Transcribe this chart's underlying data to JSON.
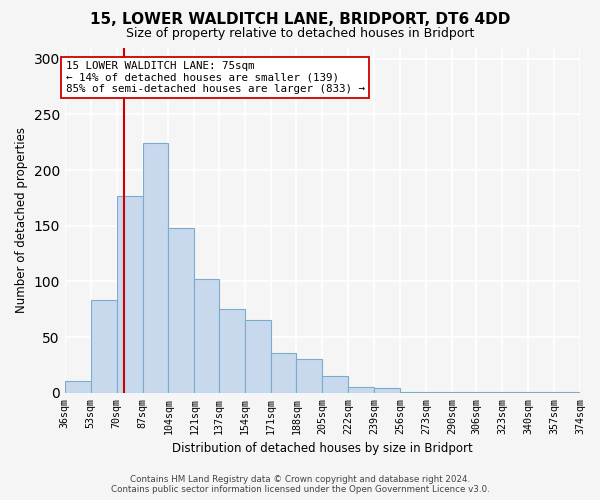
{
  "title": "15, LOWER WALDITCH LANE, BRIDPORT, DT6 4DD",
  "subtitle": "Size of property relative to detached houses in Bridport",
  "xlabel": "Distribution of detached houses by size in Bridport",
  "ylabel": "Number of detached properties",
  "bar_edges": [
    36,
    53,
    70,
    87,
    104,
    121,
    137,
    154,
    171,
    188,
    205,
    222,
    239,
    256,
    273,
    290,
    306,
    323,
    340,
    357,
    374
  ],
  "bar_heights": [
    11,
    83,
    177,
    224,
    148,
    102,
    75,
    65,
    36,
    30,
    15,
    5,
    4,
    1,
    1,
    1,
    1,
    1,
    1,
    1
  ],
  "bar_color": "#c8d9ee",
  "bar_edge_color": "#7aadcc",
  "property_line_x": 75,
  "property_line_color": "#cc0000",
  "ylim": [
    0,
    310
  ],
  "annotation_title": "15 LOWER WALDITCH LANE: 75sqm",
  "annotation_line1": "← 14% of detached houses are smaller (139)",
  "annotation_line2": "85% of semi-detached houses are larger (833) →",
  "annotation_box_color": "#ffffff",
  "annotation_box_edge": "#cc0000",
  "footer_line1": "Contains HM Land Registry data © Crown copyright and database right 2024.",
  "footer_line2": "Contains public sector information licensed under the Open Government Licence v3.0.",
  "tick_labels": [
    "36sqm",
    "53sqm",
    "70sqm",
    "87sqm",
    "104sqm",
    "121sqm",
    "137sqm",
    "154sqm",
    "171sqm",
    "188sqm",
    "205sqm",
    "222sqm",
    "239sqm",
    "256sqm",
    "273sqm",
    "290sqm",
    "306sqm",
    "323sqm",
    "340sqm",
    "357sqm",
    "374sqm"
  ],
  "background_color": "#f5f5f5",
  "grid_color": "#ffffff",
  "yticks": [
    0,
    50,
    100,
    150,
    200,
    250,
    300
  ]
}
